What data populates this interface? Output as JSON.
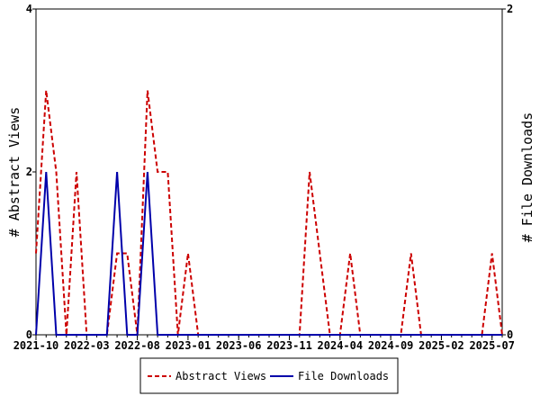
{
  "chart_data": {
    "type": "line",
    "x": [
      "2021-10",
      "2021-11",
      "2021-12",
      "2022-01",
      "2022-02",
      "2022-03",
      "2022-04",
      "2022-05",
      "2022-06",
      "2022-07",
      "2022-08",
      "2022-09",
      "2022-10",
      "2022-11",
      "2022-12",
      "2023-01",
      "2023-02",
      "2023-03",
      "2023-04",
      "2023-05",
      "2023-06",
      "2023-07",
      "2023-08",
      "2023-09",
      "2023-10",
      "2023-11",
      "2023-12",
      "2024-01",
      "2024-02",
      "2024-03",
      "2024-04",
      "2024-05",
      "2024-06",
      "2024-07",
      "2024-08",
      "2024-09",
      "2024-10",
      "2024-11",
      "2024-12",
      "2025-01",
      "2025-02",
      "2025-03",
      "2025-04",
      "2025-05",
      "2025-06",
      "2025-07",
      "2025-08"
    ],
    "x_tick_labels": [
      "2021-10",
      "2022-03",
      "2022-08",
      "2023-01",
      "2023-06",
      "2023-11",
      "2024-04",
      "2024-09",
      "2025-02",
      "2025-07"
    ],
    "series": [
      {
        "name": "Abstract Views",
        "axis": "left",
        "color": "#cc0000",
        "dash": true,
        "values": [
          1,
          3,
          2,
          0,
          2,
          0,
          0,
          0,
          1,
          1,
          0,
          3,
          2,
          2,
          0,
          1,
          0,
          0,
          0,
          0,
          0,
          0,
          0,
          0,
          0,
          0,
          0,
          2,
          1,
          0,
          0,
          1,
          0,
          0,
          0,
          0,
          0,
          1,
          0,
          0,
          0,
          0,
          0,
          0,
          0,
          1,
          0
        ]
      },
      {
        "name": "File Downloads",
        "axis": "right",
        "color": "#0000aa",
        "dash": false,
        "values": [
          0,
          1,
          0,
          0,
          0,
          0,
          0,
          0,
          1,
          0,
          0,
          1,
          0,
          0,
          0,
          0,
          0,
          0,
          0,
          0,
          0,
          0,
          0,
          0,
          0,
          0,
          0,
          0,
          0,
          0,
          0,
          0,
          0,
          0,
          0,
          0,
          0,
          0,
          0,
          0,
          0,
          0,
          0,
          0,
          0,
          0,
          0
        ]
      }
    ],
    "y_left": {
      "label": "# Abstract Views",
      "lim": [
        0,
        4
      ],
      "ticks": [
        "0",
        "2",
        "4"
      ]
    },
    "y_right": {
      "label": "# File Downloads",
      "lim": [
        0,
        2
      ],
      "ticks": [
        "0",
        "2"
      ]
    },
    "legend_position": "bottom-center",
    "grid": false
  }
}
